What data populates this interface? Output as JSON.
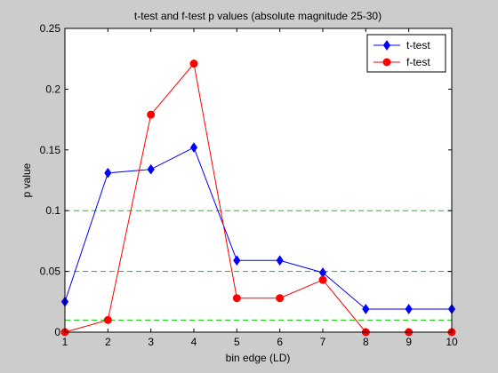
{
  "chart_data": {
    "type": "line",
    "title": "t-test and f-test p values (absolute magnitude 25-30)",
    "xlabel": "bin edge (LD)",
    "ylabel": "p value",
    "xlim": [
      1,
      10
    ],
    "ylim": [
      0,
      0.25
    ],
    "xticks": [
      "1",
      "2",
      "3",
      "4",
      "5",
      "6",
      "7",
      "8",
      "9",
      "10"
    ],
    "yticks": [
      "0",
      "0.05",
      "0.1",
      "0.15",
      "0.2",
      "0.25"
    ],
    "x": [
      1,
      2,
      3,
      4,
      5,
      6,
      7,
      8,
      9,
      10
    ],
    "series": [
      {
        "name": "t-test",
        "color": "#0000ff",
        "marker": "diamond",
        "values": [
          0.025,
          0.131,
          0.134,
          0.152,
          0.059,
          0.059,
          0.049,
          0.019,
          0.019,
          0.019
        ]
      },
      {
        "name": "f-test",
        "color": "#ff0000",
        "marker": "circle",
        "values": [
          0.0,
          0.01,
          0.179,
          0.221,
          0.028,
          0.028,
          0.043,
          0.0,
          0.0,
          0.0
        ]
      }
    ],
    "reference_lines": {
      "color": "#00cc00",
      "style": "dashed",
      "values": [
        0.01,
        0.05,
        0.1
      ]
    },
    "grid": false,
    "legend_position": "top-right"
  }
}
